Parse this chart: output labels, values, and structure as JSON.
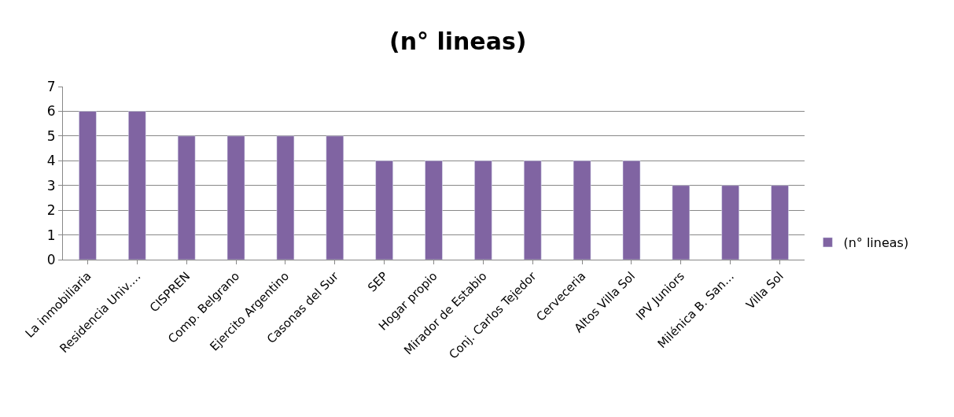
{
  "chart_data": {
    "type": "bar",
    "title": "(n° lineas)",
    "categories": [
      "La inmobiliaria",
      "Residencia Univ.…",
      "CISPREN",
      "Comp. Belgrano",
      "Ejercito Argentino",
      "Casonas del Sur",
      "SEP",
      "Hogar propio",
      "Mirador de Estabio",
      "Conj. Carlos Tejedor",
      "Cerveceria",
      "Altos Villa Sol",
      "IPV Juniors",
      "Milénica B. San…",
      "Villa Sol"
    ],
    "series": [
      {
        "name": "(n° lineas)",
        "color": "#8064a2",
        "values": [
          6,
          6,
          5,
          5,
          5,
          5,
          4,
          4,
          4,
          4,
          4,
          4,
          3,
          3,
          3
        ]
      }
    ],
    "ylim": [
      0,
      7
    ],
    "yticks": [
      0,
      1,
      2,
      3,
      4,
      5,
      6,
      7
    ],
    "grid": "y",
    "legend": "right"
  }
}
